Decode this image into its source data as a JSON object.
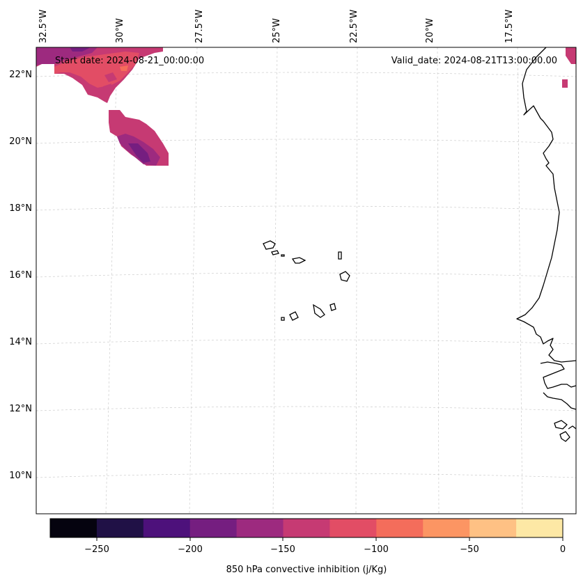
{
  "map": {
    "start_date": "Start date: 2024-08-21_00:00:00",
    "valid_date": "Valid_date: 2024-08-21T13:00:00.00",
    "lon_labels": [
      "32.5°W",
      "30°W",
      "27.5°W",
      "25°W",
      "22.5°W",
      "20°W",
      "17.5°W"
    ],
    "lat_labels": [
      "22°N",
      "20°N",
      "18°N",
      "16°N",
      "14°N",
      "12°N",
      "10°N"
    ]
  },
  "colorbar": {
    "label": "850 hPa convective inhibition (j/Kg)",
    "tick_labels": [
      "−250",
      "−200",
      "−150",
      "−100",
      "−50",
      "0"
    ],
    "colors": [
      "#05030f",
      "#201146",
      "#4d117b",
      "#751e80",
      "#9d2a7f",
      "#c63a73",
      "#e24d65",
      "#f46d5b",
      "#fc9563",
      "#fec184",
      "#fde8a5"
    ]
  }
}
